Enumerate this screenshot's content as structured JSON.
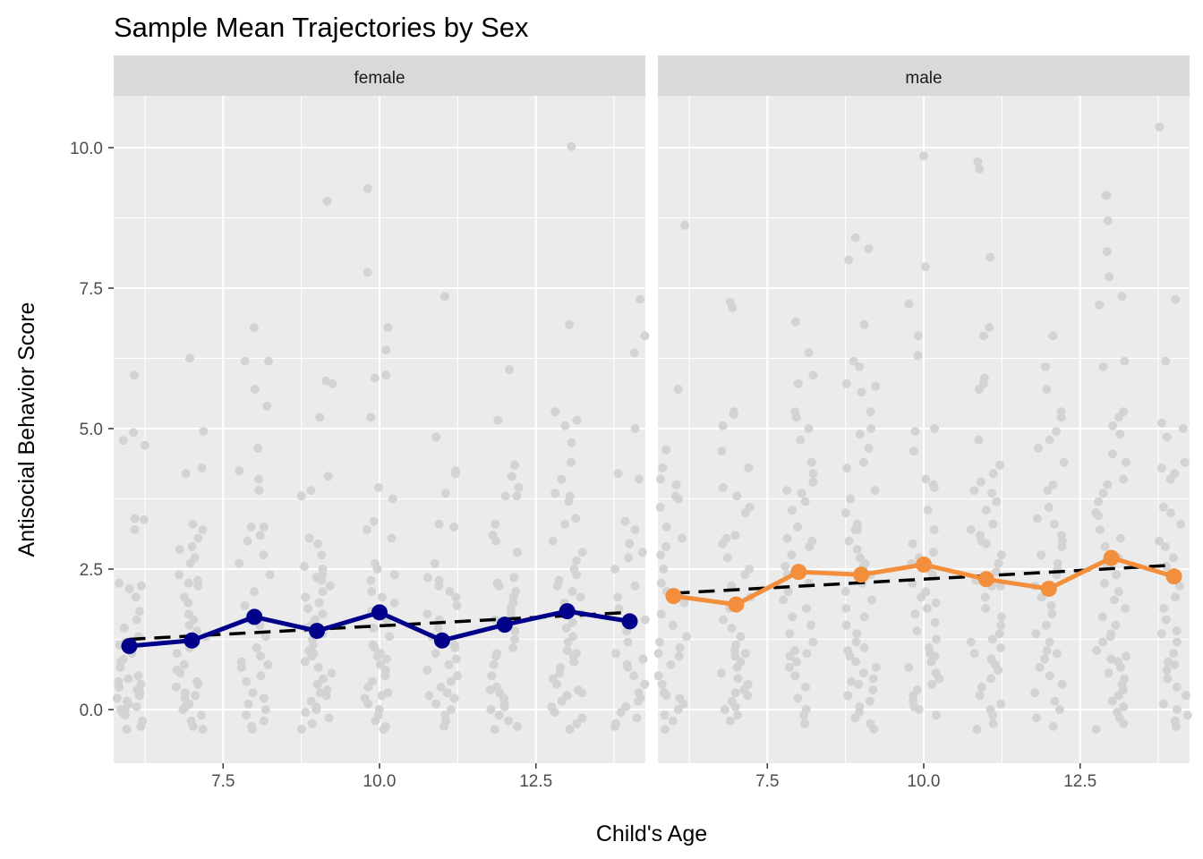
{
  "chart_data": {
    "type": "scatter",
    "title": "Sample Mean Trajectories by Sex",
    "xlabel": "Child's Age",
    "ylabel": "Antisocial Behavior Score",
    "xlim": [
      5.75,
      14.25
    ],
    "ylim": [
      -0.9,
      11.0
    ],
    "x_ticks": [
      7.5,
      10.0,
      12.5
    ],
    "x_tick_labels": [
      "7.5",
      "10.0",
      "12.5"
    ],
    "y_ticks": [
      0.0,
      2.5,
      5.0,
      7.5,
      10.0
    ],
    "y_tick_labels": [
      "0.0",
      "2.5",
      "5.0",
      "7.5",
      "10.0"
    ],
    "grid": true,
    "legend": "none",
    "colors": {
      "panel_bg": "#ebebeb",
      "strip_bg": "#d9d9d9",
      "grid": "#ffffff",
      "points": "#d3d3d3",
      "trend": "#000000",
      "female_mean": "#00008b",
      "male_mean": "#f28e3c"
    },
    "facets": [
      {
        "label": "female",
        "mean_color": "#00008b",
        "mean_x": [
          6,
          7,
          8,
          9,
          10,
          11,
          12,
          13,
          14
        ],
        "mean_y": [
          1.13,
          1.23,
          1.65,
          1.4,
          1.73,
          1.23,
          1.51,
          1.75,
          1.57
        ],
        "trend_x": [
          6,
          14
        ],
        "trend_y": [
          1.25,
          1.73
        ],
        "points": {
          "6": [
            5.95,
            4.79,
            4.93,
            4.7,
            3.4,
            3.2,
            2.25,
            2.2,
            2.0,
            1.75,
            1.6,
            1.45,
            1.3,
            1.15,
            1.0,
            0.85,
            0.75,
            0.6,
            0.45,
            0.3,
            0.2,
            0.1,
            0.05,
            0.0,
            -0.05,
            -0.1,
            -0.2,
            -0.3,
            -0.35,
            0.15,
            0.25,
            0.4,
            0.5,
            0.9,
            1.2,
            2.15,
            3.38,
            0.55,
            0.35,
            0.0
          ],
          "7": [
            6.25,
            4.95,
            4.3,
            4.2,
            3.3,
            3.2,
            3.05,
            2.85,
            2.7,
            2.4,
            2.3,
            2.25,
            2.2,
            2.0,
            1.9,
            1.7,
            1.5,
            1.3,
            1.1,
            1.0,
            0.8,
            0.65,
            0.5,
            0.4,
            0.3,
            0.2,
            0.1,
            0.0,
            -0.1,
            -0.2,
            -0.3,
            -0.35,
            0.25,
            0.45,
            0.7,
            1.6,
            2.6,
            2.9,
            1.4,
            0.05
          ],
          "8": [
            6.8,
            6.2,
            6.2,
            5.7,
            5.4,
            4.65,
            4.25,
            4.1,
            3.9,
            3.25,
            3.25,
            3.1,
            3.0,
            2.75,
            2.4,
            2.1,
            1.85,
            1.7,
            1.5,
            1.3,
            1.1,
            0.95,
            0.85,
            0.8,
            0.75,
            0.5,
            0.3,
            0.2,
            0.1,
            0.0,
            -0.1,
            -0.2,
            -0.3,
            -0.35,
            2.6,
            1.6,
            0.6
          ],
          "9": [
            9.05,
            5.85,
            5.8,
            5.2,
            4.15,
            3.9,
            3.8,
            3.05,
            2.95,
            2.75,
            2.5,
            2.4,
            2.35,
            2.3,
            2.2,
            2.1,
            2.0,
            1.9,
            1.8,
            1.7,
            1.6,
            1.5,
            1.35,
            1.25,
            1.15,
            1.05,
            0.95,
            0.85,
            0.75,
            0.65,
            0.55,
            0.45,
            0.35,
            0.25,
            0.15,
            0.05,
            0.0,
            -0.05,
            -0.15,
            -0.25,
            -0.35,
            0.3,
            1.0,
            2.55,
            1.45
          ],
          "10": [
            9.27,
            7.78,
            6.8,
            6.4,
            5.95,
            5.9,
            5.2,
            3.95,
            3.75,
            3.35,
            3.2,
            3.05,
            2.6,
            2.4,
            2.3,
            2.1,
            2.0,
            1.9,
            1.75,
            1.6,
            1.45,
            1.3,
            1.15,
            1.0,
            0.9,
            0.8,
            0.7,
            0.6,
            0.5,
            0.4,
            0.3,
            0.2,
            0.1,
            0.0,
            -0.1,
            -0.2,
            -0.3,
            -0.35,
            0.25,
            1.1,
            2.5,
            0.95
          ],
          "11": [
            7.35,
            4.85,
            4.25,
            4.2,
            3.85,
            3.3,
            3.25,
            2.6,
            2.35,
            2.3,
            2.2,
            2.0,
            1.85,
            1.7,
            1.6,
            1.45,
            1.3,
            1.15,
            1.0,
            0.9,
            0.8,
            0.6,
            0.5,
            0.4,
            0.3,
            0.2,
            0.1,
            0.0,
            -0.1,
            -0.2,
            -0.3,
            0.25,
            1.1,
            2.1,
            0.7
          ],
          "12": [
            6.05,
            5.15,
            4.35,
            4.15,
            3.95,
            3.8,
            3.8,
            3.3,
            3.1,
            3.0,
            2.8,
            2.35,
            2.25,
            2.2,
            2.1,
            1.9,
            1.8,
            1.7,
            1.6,
            1.4,
            1.25,
            1.1,
            0.95,
            0.8,
            0.6,
            0.4,
            0.3,
            0.2,
            0.1,
            0.0,
            -0.1,
            -0.2,
            -0.3,
            -0.35,
            0.35,
            1.0,
            2.0,
            0.05
          ],
          "13": [
            10.02,
            6.85,
            5.3,
            5.15,
            5.05,
            4.75,
            4.4,
            4.1,
            3.85,
            3.8,
            3.7,
            3.4,
            3.3,
            3.0,
            2.8,
            2.65,
            2.4,
            2.3,
            2.2,
            2.1,
            2.0,
            1.9,
            1.8,
            1.7,
            1.55,
            1.45,
            1.3,
            1.2,
            1.05,
            0.95,
            0.85,
            0.75,
            0.65,
            0.55,
            0.45,
            0.35,
            0.25,
            0.15,
            0.05,
            -0.05,
            -0.15,
            -0.25,
            -0.35,
            0.3,
            1.0,
            2.5
          ],
          "14": [
            7.3,
            6.65,
            6.35,
            5.0,
            4.2,
            4.1,
            3.35,
            3.2,
            2.95,
            2.8,
            2.7,
            2.5,
            2.2,
            2.0,
            1.8,
            1.6,
            1.4,
            1.2,
            1.0,
            0.9,
            0.75,
            0.6,
            0.45,
            0.3,
            0.15,
            0.05,
            -0.05,
            -0.15,
            -0.25,
            -0.3,
            0.2,
            0.8
          ]
        }
      },
      {
        "label": "male",
        "mean_color": "#f28e3c",
        "mean_x": [
          6,
          7,
          8,
          9,
          10,
          11,
          12,
          13,
          14
        ],
        "mean_y": [
          2.02,
          1.87,
          2.45,
          2.4,
          2.58,
          2.32,
          2.15,
          2.7,
          2.37
        ],
        "trend_x": [
          6,
          14
        ],
        "trend_y": [
          2.07,
          2.57
        ],
        "points": {
          "6": [
            8.62,
            5.7,
            4.62,
            4.3,
            4.1,
            4.0,
            3.8,
            3.75,
            3.6,
            3.25,
            2.9,
            2.75,
            2.5,
            2.25,
            2.1,
            1.9,
            1.7,
            1.5,
            1.3,
            1.2,
            1.1,
            0.95,
            0.8,
            0.6,
            0.45,
            0.3,
            0.2,
            0.1,
            0.0,
            -0.1,
            -0.2,
            -0.35,
            3.05,
            1.0,
            0.25
          ],
          "7": [
            7.25,
            7.15,
            5.3,
            5.25,
            5.05,
            4.6,
            4.3,
            3.95,
            3.8,
            3.6,
            3.5,
            3.05,
            2.95,
            2.7,
            2.5,
            2.4,
            2.2,
            2.0,
            1.8,
            1.6,
            1.45,
            1.3,
            1.15,
            1.05,
            0.95,
            0.85,
            0.75,
            0.65,
            0.55,
            0.45,
            0.35,
            0.25,
            0.15,
            0.05,
            0.0,
            -0.1,
            -0.2,
            3.1,
            1.0,
            0.3
          ],
          "8": [
            6.9,
            6.35,
            5.95,
            5.8,
            5.3,
            5.2,
            5.0,
            4.8,
            4.4,
            4.2,
            4.05,
            3.9,
            3.85,
            3.7,
            3.55,
            3.25,
            3.05,
            2.9,
            2.75,
            2.55,
            2.4,
            2.25,
            2.1,
            1.95,
            1.8,
            1.65,
            1.5,
            1.35,
            1.2,
            1.05,
            0.95,
            0.85,
            0.75,
            0.6,
            0.4,
            0.2,
            0.0,
            -0.1,
            -0.25,
            3.0,
            1.0
          ],
          "9": [
            8.4,
            8.2,
            8.0,
            6.85,
            6.2,
            6.1,
            5.8,
            5.75,
            5.65,
            5.3,
            5.0,
            4.9,
            4.65,
            4.4,
            4.3,
            3.9,
            3.75,
            3.5,
            3.3,
            3.2,
            3.0,
            2.85,
            2.7,
            2.55,
            2.4,
            2.25,
            2.1,
            1.95,
            1.8,
            1.65,
            1.5,
            1.35,
            1.2,
            1.05,
            0.95,
            0.85,
            0.75,
            0.65,
            0.55,
            0.45,
            0.35,
            0.25,
            0.15,
            0.05,
            -0.05,
            -0.15,
            -0.25,
            -0.35,
            3.2,
            1.1,
            0.5,
            2.6
          ],
          "10": [
            9.85,
            7.88,
            7.22,
            6.65,
            6.3,
            5.0,
            4.95,
            4.6,
            4.1,
            4.0,
            3.95,
            3.55,
            3.2,
            2.95,
            2.8,
            2.6,
            2.5,
            2.4,
            2.25,
            2.1,
            2.0,
            1.9,
            1.8,
            1.7,
            1.55,
            1.4,
            1.25,
            1.1,
            0.95,
            0.85,
            0.75,
            0.65,
            0.55,
            0.45,
            0.35,
            0.25,
            0.15,
            0.05,
            0.0,
            -0.1,
            2.7,
            1.0
          ],
          "11": [
            9.75,
            9.62,
            8.05,
            6.8,
            6.65,
            5.9,
            5.8,
            5.7,
            4.8,
            4.35,
            4.2,
            4.05,
            3.9,
            3.85,
            3.7,
            3.55,
            3.3,
            3.2,
            3.1,
            2.95,
            2.75,
            2.6,
            2.45,
            2.3,
            2.2,
            2.0,
            1.8,
            1.65,
            1.5,
            1.35,
            1.2,
            1.1,
            1.0,
            0.9,
            0.8,
            0.7,
            0.55,
            0.4,
            0.25,
            0.1,
            0.0,
            -0.1,
            -0.25,
            -0.35,
            3.0,
            1.25,
            2.2
          ],
          "12": [
            6.65,
            6.1,
            5.7,
            5.3,
            5.2,
            4.95,
            4.8,
            4.65,
            4.4,
            4.0,
            3.9,
            3.6,
            3.4,
            3.3,
            3.1,
            2.9,
            2.75,
            2.6,
            2.4,
            2.2,
            2.0,
            1.85,
            1.7,
            1.5,
            1.35,
            1.2,
            1.05,
            0.9,
            0.75,
            0.6,
            0.45,
            0.3,
            0.15,
            0.0,
            -0.15,
            -0.3,
            3.0,
            1.0,
            2.5
          ],
          "13": [
            9.15,
            9.15,
            8.7,
            8.15,
            7.7,
            7.35,
            7.2,
            6.2,
            6.1,
            5.3,
            5.2,
            5.05,
            4.9,
            4.55,
            4.4,
            4.1,
            4.0,
            3.85,
            3.7,
            3.45,
            3.2,
            3.05,
            2.9,
            2.7,
            2.55,
            2.4,
            2.25,
            2.1,
            1.95,
            1.8,
            1.65,
            1.5,
            1.35,
            1.2,
            1.05,
            0.95,
            0.85,
            0.75,
            0.65,
            0.55,
            0.45,
            0.35,
            0.25,
            0.15,
            0.05,
            -0.05,
            -0.15,
            -0.25,
            -0.35,
            3.5,
            1.3,
            0.9
          ],
          "14": [
            10.37,
            7.3,
            6.2,
            5.1,
            5.0,
            4.85,
            4.4,
            4.3,
            4.2,
            4.1,
            3.6,
            3.5,
            3.3,
            3.0,
            2.9,
            2.7,
            2.55,
            2.4,
            2.2,
            2.0,
            1.8,
            1.6,
            1.4,
            1.2,
            1.0,
            0.85,
            0.7,
            0.55,
            0.4,
            0.25,
            0.1,
            0.0,
            -0.1,
            -0.2,
            -0.3,
            1.35,
            0.8
          ]
        }
      }
    ]
  }
}
